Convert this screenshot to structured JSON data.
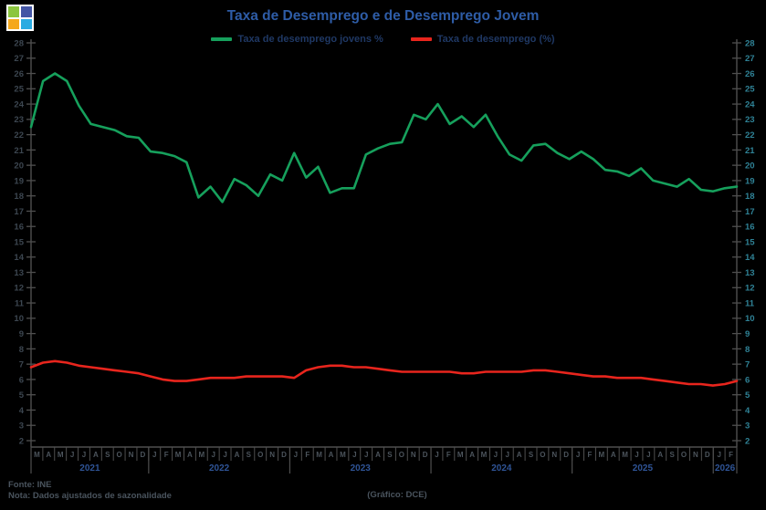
{
  "header": {
    "title": "Taxa de Desemprego e de Desemprego Jovem",
    "title_color": "#2E5CA6",
    "logo": {
      "top_left": "#8CC63E",
      "top_right": "#4456A5",
      "bottom_left": "#F5A81C",
      "bottom_right": "#29ABE2"
    }
  },
  "footer": {
    "source": "Fonte: INE",
    "note": "Nota: Dados ajustados de sazonalidade",
    "credit": "(Gráfico: DCE)",
    "text_color": "#4A545E"
  },
  "colors": {
    "background": "#000000",
    "axis_line": "#4F4F4F",
    "left_tick_labels": "#3C4650",
    "right_tick_labels": "#2F8296",
    "month_labels": "#4C545C",
    "year_labels": "#2F5496",
    "legend_text": "#1F3864"
  },
  "chart_data": {
    "type": "line",
    "title": "Taxa de Desemprego e de Desemprego Jovem",
    "x_start": "2021-03",
    "x_end": "2026-02",
    "ylim": [
      2,
      28
    ],
    "y_tick_step": 1,
    "grid": false,
    "legend_position": "top",
    "months": [
      "M",
      "A",
      "M",
      "J",
      "J",
      "A",
      "S",
      "O",
      "N",
      "D",
      "J",
      "F",
      "M",
      "A",
      "M",
      "J",
      "J",
      "A",
      "S",
      "O",
      "N",
      "D",
      "J",
      "F",
      "M",
      "A",
      "M",
      "J",
      "J",
      "A",
      "S",
      "O",
      "N",
      "D",
      "J",
      "F",
      "M",
      "A",
      "M",
      "J",
      "J",
      "A",
      "S",
      "O",
      "N",
      "D",
      "J",
      "F",
      "M",
      "A",
      "M",
      "J",
      "J",
      "A",
      "S",
      "O",
      "N",
      "D",
      "J",
      "F"
    ],
    "years": [
      {
        "label": "2021",
        "count": 10
      },
      {
        "label": "2022",
        "count": 12
      },
      {
        "label": "2023",
        "count": 12
      },
      {
        "label": "2024",
        "count": 12
      },
      {
        "label": "2025",
        "count": 12
      },
      {
        "label": "2026",
        "count": 2
      }
    ],
    "series": [
      {
        "name": "Taxa de desemprego jovens %",
        "color": "#16A05C",
        "values": [
          22.5,
          25.5,
          26.0,
          25.5,
          23.9,
          22.7,
          22.5,
          22.3,
          21.9,
          21.8,
          20.9,
          20.8,
          20.6,
          20.2,
          17.9,
          18.6,
          17.6,
          19.1,
          18.7,
          18.0,
          19.4,
          19.0,
          20.8,
          19.2,
          19.9,
          18.2,
          18.5,
          18.5,
          20.7,
          21.1,
          21.4,
          21.5,
          23.3,
          23.0,
          24.0,
          22.7,
          23.2,
          22.5,
          23.3,
          21.9,
          20.7,
          20.3,
          21.3,
          21.4,
          20.8,
          20.4,
          20.9,
          20.4,
          19.7,
          19.6,
          19.3,
          19.8,
          19.0,
          18.8,
          18.6,
          19.1,
          18.4,
          18.3,
          18.5,
          18.6
        ]
      },
      {
        "name": "Taxa de desemprego (%)",
        "color": "#E8251D",
        "values": [
          6.8,
          7.1,
          7.2,
          7.1,
          6.9,
          6.8,
          6.7,
          6.6,
          6.5,
          6.4,
          6.2,
          6.0,
          5.9,
          5.9,
          6.0,
          6.1,
          6.1,
          6.1,
          6.2,
          6.2,
          6.2,
          6.2,
          6.1,
          6.6,
          6.8,
          6.9,
          6.9,
          6.8,
          6.8,
          6.7,
          6.6,
          6.5,
          6.5,
          6.5,
          6.5,
          6.5,
          6.4,
          6.4,
          6.5,
          6.5,
          6.5,
          6.5,
          6.6,
          6.6,
          6.5,
          6.4,
          6.3,
          6.2,
          6.2,
          6.1,
          6.1,
          6.1,
          6.0,
          5.9,
          5.8,
          5.7,
          5.7,
          5.6,
          5.7,
          5.9
        ]
      }
    ]
  }
}
